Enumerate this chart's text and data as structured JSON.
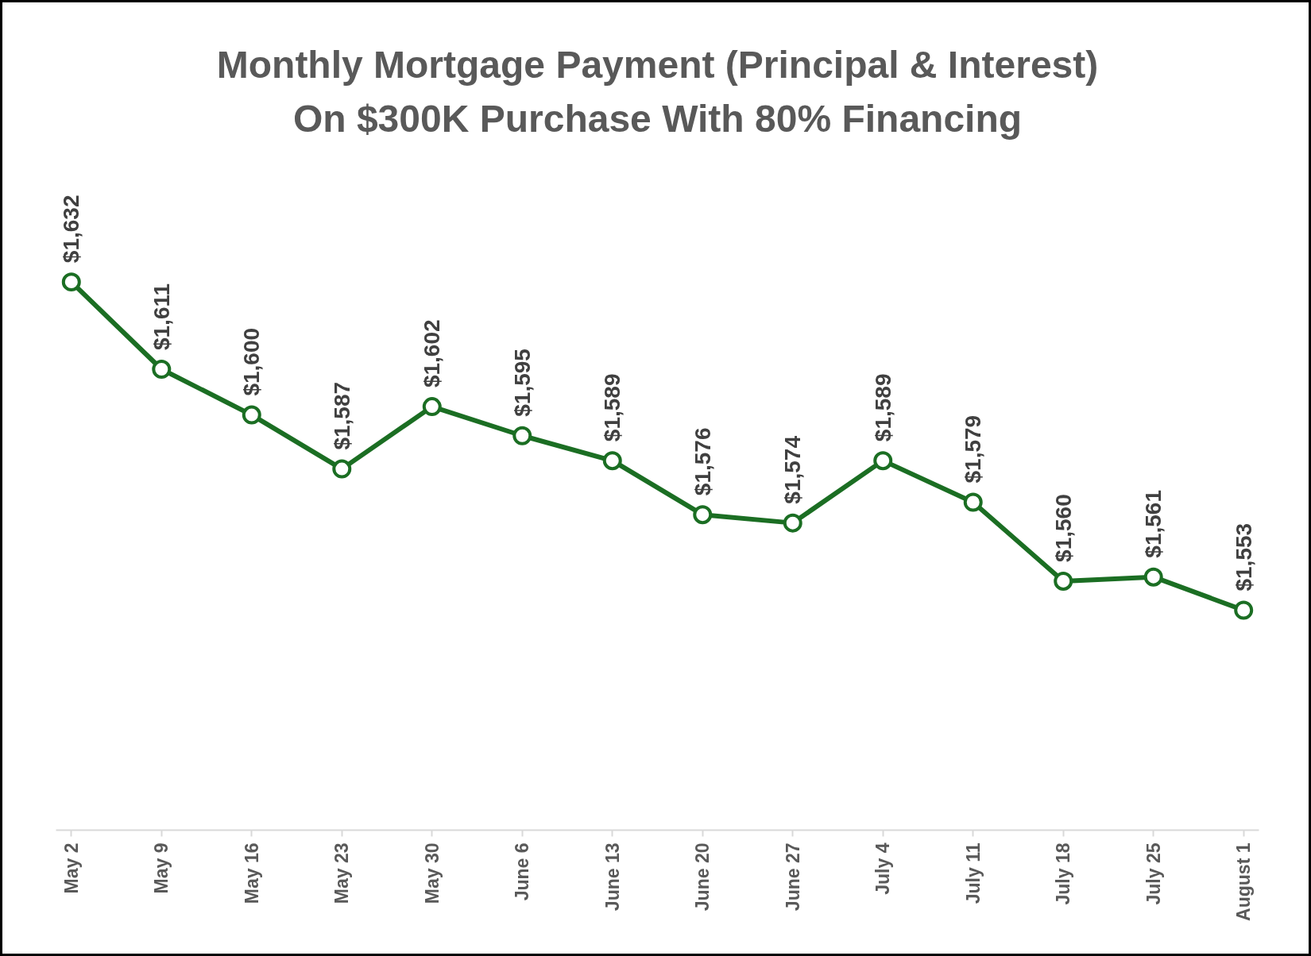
{
  "chart_data": {
    "type": "line",
    "title": "Monthly Mortgage Payment (Principal & Interest)\nOn $300K Purchase With 80% Financing",
    "categories": [
      "May 2",
      "May 9",
      "May 16",
      "May 23",
      "May 30",
      "June 6",
      "June 13",
      "June 20",
      "June 27",
      "July 4",
      "July 11",
      "July 18",
      "July 25",
      "August 1"
    ],
    "values": [
      1632,
      1611,
      1600,
      1587,
      1602,
      1595,
      1589,
      1576,
      1574,
      1589,
      1579,
      1560,
      1561,
      1553
    ],
    "value_labels": [
      "$1,632",
      "$1,611",
      "$1,600",
      "$1,587",
      "$1,602",
      "$1,595",
      "$1,589",
      "$1,576",
      "$1,574",
      "$1,589",
      "$1,579",
      "$1,560",
      "$1,561",
      "$1,553"
    ],
    "color": "#1b6e23",
    "tick_labels": "x",
    "marker": "circle",
    "line_style": "solid"
  }
}
